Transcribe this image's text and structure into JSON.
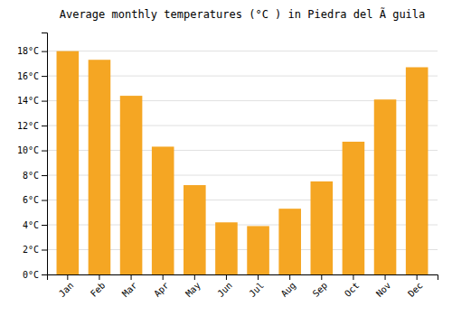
{
  "chart_data": {
    "type": "bar",
    "title": "Average monthly temperatures (°C ) in Piedra del Ã guila",
    "categories": [
      "Jan",
      "Feb",
      "Mar",
      "Apr",
      "May",
      "Jun",
      "Jul",
      "Aug",
      "Sep",
      "Oct",
      "Nov",
      "Dec"
    ],
    "values": [
      18.0,
      17.3,
      14.4,
      10.3,
      7.2,
      4.2,
      3.9,
      5.3,
      7.5,
      10.7,
      14.1,
      16.7
    ],
    "color": "#F5A623",
    "ylim": [
      0,
      19.5
    ],
    "yticks": [
      {
        "value": 0,
        "label": "0°C"
      },
      {
        "value": 2,
        "label": "2°C"
      },
      {
        "value": 4,
        "label": "4°C"
      },
      {
        "value": 6,
        "label": "6°C"
      },
      {
        "value": 8,
        "label": "8°C"
      },
      {
        "value": 10,
        "label": "10°C"
      },
      {
        "value": 12,
        "label": "12°C"
      },
      {
        "value": 14,
        "label": "14°C"
      },
      {
        "value": 16,
        "label": "16°C"
      },
      {
        "value": 18,
        "label": "18°C"
      }
    ],
    "grid": true
  }
}
